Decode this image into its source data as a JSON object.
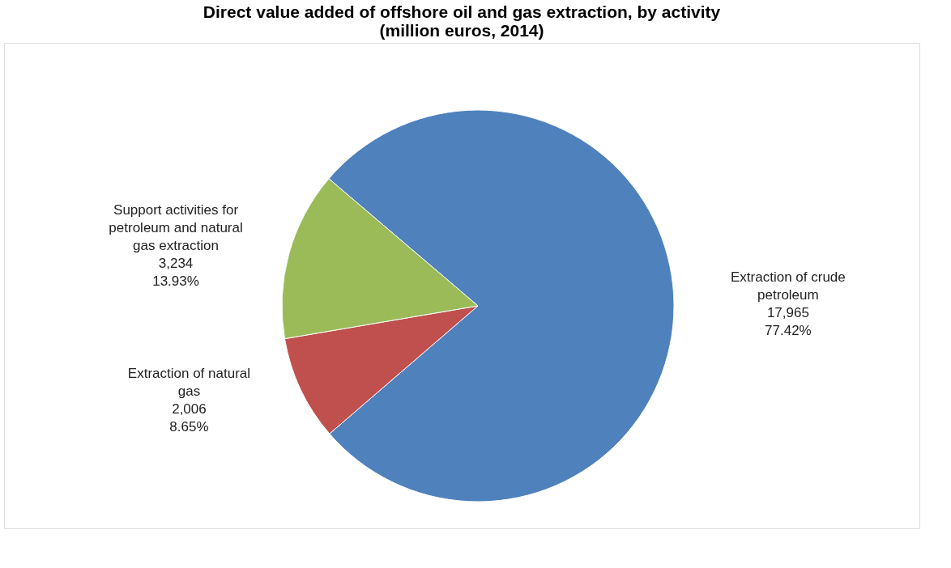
{
  "chart_data": {
    "type": "pie",
    "title": "Direct value added of offshore oil and gas extraction, by activity\n(million euros, 2014)",
    "categories": [
      "Extraction of crude petroleum",
      "Extraction of natural gas",
      "Support activities for petroleum and natural gas extraction"
    ],
    "values": [
      17965,
      2006,
      3234
    ],
    "colors": [
      "#4f81bd",
      "#c0504d",
      "#9bbb59"
    ],
    "value_labels": [
      "17,965\n77.42%",
      "2,006\n8.65%",
      "3,234\n13.93%"
    ],
    "legend": false
  }
}
